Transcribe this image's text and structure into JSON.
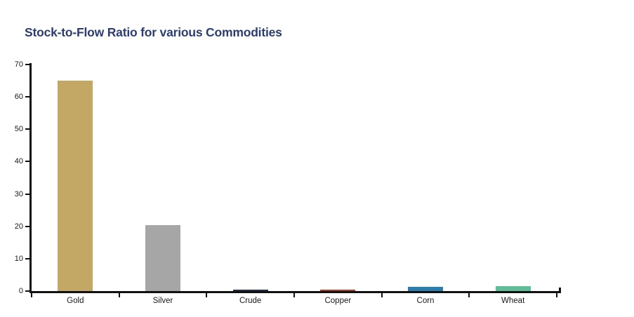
{
  "page": {
    "background": "#FFFFFF"
  },
  "chart_data": {
    "type": "bar",
    "title": "Stock-to-Flow Ratio for various Commodities",
    "title_color": "#2C3D6E",
    "categories": [
      "Gold",
      "Silver",
      "Crude",
      "Copper",
      "Corn",
      "Wheat"
    ],
    "values": [
      65,
      20.3,
      0.5,
      0.35,
      1.2,
      1.5
    ],
    "bar_colors": [
      "#C2A765",
      "#A6A6A6",
      "#202D44",
      "#A93D26",
      "#2B7FB0",
      "#5FBD99"
    ],
    "xlabel": "",
    "ylabel": "",
    "ylim": [
      0,
      70
    ],
    "yticks": [
      0,
      10,
      20,
      30,
      40,
      50,
      60,
      70
    ],
    "grid": false,
    "legend": "none",
    "axis_color": "#111111",
    "tick_label_color": "#1A1A1A"
  }
}
